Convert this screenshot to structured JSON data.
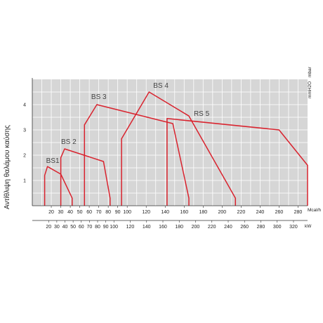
{
  "chart_data": {
    "type": "area",
    "ylabel": "Αντίθλιψη θαλάμου καύσης",
    "y_units": [
      "mbar",
      "mmH2O"
    ],
    "x_units": [
      "Mcal/h",
      "kW"
    ],
    "ylim": [
      0,
      5
    ],
    "xlim_mcal": [
      0,
      290
    ],
    "y_ticks": [
      1,
      2,
      3,
      4
    ],
    "x_ticks_mcal": [
      20,
      30,
      40,
      50,
      60,
      70,
      80,
      90,
      100,
      120,
      140,
      160,
      180,
      200,
      220,
      240,
      260,
      280
    ],
    "x_ticks_kw": [
      20,
      30,
      40,
      50,
      60,
      70,
      80,
      90,
      100,
      120,
      140,
      160,
      180,
      200,
      220,
      240,
      260,
      280,
      300,
      320
    ],
    "grid": true,
    "series": [
      {
        "name": "BS1",
        "points": [
          [
            13,
            0
          ],
          [
            13,
            1.2
          ],
          [
            16,
            1.55
          ],
          [
            30,
            1.25
          ],
          [
            42,
            0.3
          ],
          [
            42,
            0
          ]
        ]
      },
      {
        "name": "BS 2",
        "points": [
          [
            30,
            0
          ],
          [
            30,
            1.9
          ],
          [
            34,
            2.25
          ],
          [
            75,
            1.75
          ],
          [
            82,
            0.3
          ],
          [
            82,
            0
          ]
        ]
      },
      {
        "name": "BS 3",
        "points": [
          [
            55,
            0
          ],
          [
            55,
            3.2
          ],
          [
            68,
            4.0
          ],
          [
            148,
            3.25
          ],
          [
            165,
            0.3
          ],
          [
            165,
            0
          ]
        ]
      },
      {
        "name": "BS 4",
        "points": [
          [
            94,
            0
          ],
          [
            94,
            2.65
          ],
          [
            123,
            4.5
          ],
          [
            165,
            3.55
          ],
          [
            214,
            0.3
          ],
          [
            214,
            0
          ]
        ]
      },
      {
        "name": "RS 5",
        "points": [
          [
            142,
            0
          ],
          [
            142,
            3.45
          ],
          [
            260,
            3.0
          ],
          [
            290,
            1.6
          ],
          [
            290,
            0
          ]
        ]
      }
    ],
    "colors": {
      "curve": "#d9232e",
      "background": "#d6d6d6",
      "grid": "#ffffff"
    }
  }
}
